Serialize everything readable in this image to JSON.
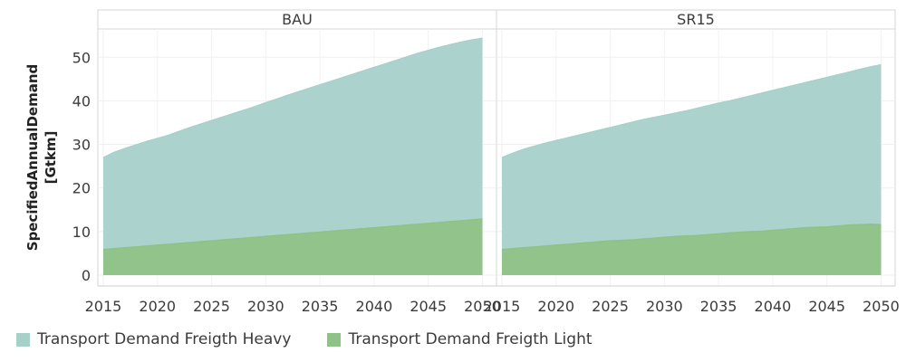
{
  "chart_data": {
    "type": "area",
    "stacked": false,
    "ylabel": "SpecifiedAnnualDemand [Gtkm]",
    "ylim": [
      -2.5,
      56.5
    ],
    "yticks": [
      0,
      10,
      20,
      30,
      40,
      50
    ],
    "xlim": [
      2014.5,
      2051.3
    ],
    "xticks": [
      2015,
      2020,
      2025,
      2030,
      2035,
      2040,
      2045,
      2050
    ],
    "grid": true,
    "legend_position": "bottom-left",
    "x": [
      2015,
      2016,
      2017,
      2018,
      2019,
      2020,
      2021,
      2022,
      2023,
      2024,
      2025,
      2026,
      2027,
      2028,
      2029,
      2030,
      2031,
      2032,
      2033,
      2034,
      2035,
      2036,
      2037,
      2038,
      2039,
      2040,
      2041,
      2042,
      2043,
      2044,
      2045,
      2046,
      2047,
      2048,
      2049,
      2050
    ],
    "panels": [
      {
        "title": "BAU",
        "series": [
          {
            "name": "Transport Demand Freigth Heavy",
            "color": "#a7d0c9",
            "values": [
              27.0,
              28.2,
              29.1,
              29.9,
              30.7,
              31.4,
              32.1,
              33.0,
              33.9,
              34.7,
              35.5,
              36.3,
              37.1,
              37.9,
              38.7,
              39.6,
              40.4,
              41.3,
              42.1,
              42.9,
              43.7,
              44.5,
              45.3,
              46.1,
              46.9,
              47.7,
              48.5,
              49.3,
              50.1,
              50.9,
              51.6,
              52.3,
              52.9,
              53.5,
              54.0,
              54.4
            ]
          },
          {
            "name": "Transport Demand Freigth Light",
            "color": "#8fc286",
            "values": [
              5.9,
              6.1,
              6.3,
              6.5,
              6.7,
              6.9,
              7.1,
              7.3,
              7.5,
              7.7,
              7.9,
              8.1,
              8.3,
              8.5,
              8.7,
              8.9,
              9.1,
              9.3,
              9.5,
              9.7,
              9.9,
              10.1,
              10.3,
              10.5,
              10.7,
              10.9,
              11.1,
              11.3,
              11.5,
              11.7,
              11.9,
              12.1,
              12.3,
              12.5,
              12.7,
              12.9
            ]
          }
        ]
      },
      {
        "title": "SR15",
        "series": [
          {
            "name": "Transport Demand Freigth Heavy",
            "color": "#a7d0c9",
            "values": [
              27.0,
              28.0,
              28.9,
              29.6,
              30.3,
              30.9,
              31.5,
              32.1,
              32.7,
              33.3,
              33.9,
              34.5,
              35.1,
              35.7,
              36.2,
              36.7,
              37.2,
              37.7,
              38.3,
              38.9,
              39.5,
              40.0,
              40.6,
              41.2,
              41.8,
              42.4,
              43.0,
              43.6,
              44.2,
              44.8,
              45.4,
              46.0,
              46.6,
              47.2,
              47.8,
              48.3
            ]
          },
          {
            "name": "Transport Demand Freigth Light",
            "color": "#8fc286",
            "values": [
              5.9,
              6.1,
              6.3,
              6.5,
              6.7,
              6.9,
              7.1,
              7.3,
              7.5,
              7.7,
              7.9,
              8.0,
              8.1,
              8.3,
              8.5,
              8.7,
              8.9,
              9.0,
              9.1,
              9.3,
              9.5,
              9.7,
              9.9,
              10.0,
              10.1,
              10.3,
              10.5,
              10.7,
              10.9,
              11.0,
              11.1,
              11.3,
              11.5,
              11.6,
              11.7,
              11.6
            ]
          }
        ]
      }
    ]
  },
  "legend": [
    {
      "label": "Transport Demand Freigth Heavy",
      "color": "#a7d0c9"
    },
    {
      "label": "Transport Demand Freigth Light",
      "color": "#8fc286"
    }
  ]
}
